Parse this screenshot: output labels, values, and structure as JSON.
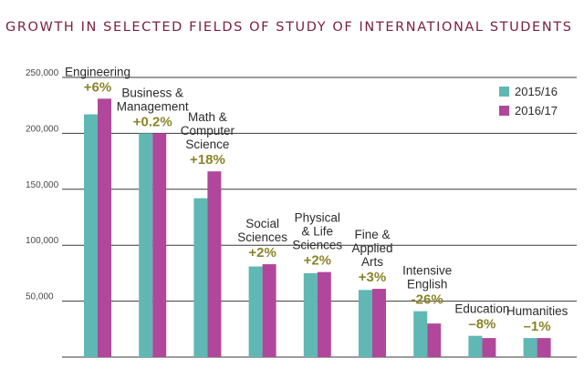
{
  "chart_data": {
    "type": "bar",
    "title": "GROWTH IN SELECTED FIELDS OF STUDY OF INTERNATIONAL STUDENTS",
    "xlabel": "",
    "ylabel": "",
    "ylim": [
      0,
      250000
    ],
    "y_ticks": [
      "50,000",
      "100,000",
      "150,000",
      "200,000",
      "250,000"
    ],
    "y_tick_values": [
      50000,
      100000,
      150000,
      200000,
      250000
    ],
    "grid": true,
    "legend_position": "top-right",
    "categories": [
      {
        "lines": [
          "Engineering"
        ],
        "change": "+6%"
      },
      {
        "lines": [
          "Business &",
          "Management"
        ],
        "change": "+0.2%"
      },
      {
        "lines": [
          "Math &",
          "Computer",
          "Science"
        ],
        "change": "+18%"
      },
      {
        "lines": [
          "Social",
          "Sciences"
        ],
        "change": "+2%"
      },
      {
        "lines": [
          "Physical",
          "& Life",
          "Sciences"
        ],
        "change": "+2%"
      },
      {
        "lines": [
          "Fine &",
          "Applied",
          "Arts"
        ],
        "change": "+3%"
      },
      {
        "lines": [
          "Intensive",
          "English"
        ],
        "change": "-26%"
      },
      {
        "lines": [
          "Education"
        ],
        "change": "–8%"
      },
      {
        "lines": [
          "Humanities"
        ],
        "change": "–1%"
      }
    ],
    "series": [
      {
        "name": "2015/16",
        "color": "#5fb8b3",
        "values": [
          217000,
          200000,
          142000,
          81000,
          75000,
          60000,
          41000,
          19000,
          17000
        ]
      },
      {
        "name": "2016/17",
        "color": "#b0479a",
        "values": [
          231000,
          200000,
          166000,
          83000,
          76000,
          61000,
          30000,
          17000,
          17000
        ]
      }
    ]
  },
  "colors": {
    "title": "#7a1f3c",
    "change_label": "#8a8428",
    "grid": "#3a3a3a"
  }
}
